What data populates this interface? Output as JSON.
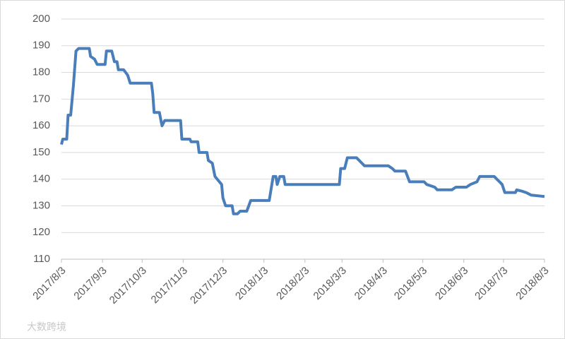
{
  "chart_data": {
    "type": "line",
    "x": [
      "2017/8/3",
      "2017/8/4",
      "2017/8/7",
      "2017/8/8",
      "2017/8/10",
      "2017/8/12",
      "2017/8/14",
      "2017/8/16",
      "2017/8/24",
      "2017/8/25",
      "2017/8/28",
      "2017/8/30",
      "2017/9/5",
      "2017/9/6",
      "2017/9/10",
      "2017/9/12",
      "2017/9/14",
      "2017/9/15",
      "2017/9/19",
      "2017/9/22",
      "2017/9/24",
      "2017/10/10",
      "2017/10/11",
      "2017/10/12",
      "2017/10/16",
      "2017/10/18",
      "2017/10/20",
      "2017/11/1",
      "2017/11/2",
      "2017/11/8",
      "2017/11/9",
      "2017/11/14",
      "2017/11/15",
      "2017/11/21",
      "2017/11/22",
      "2017/11/25",
      "2017/11/27",
      "2017/12/2",
      "2017/12/3",
      "2017/12/5",
      "2017/12/10",
      "2017/12/11",
      "2017/12/14",
      "2017/12/16",
      "2017/12/21",
      "2017/12/24",
      "2018/1/7",
      "2018/1/10",
      "2018/1/12",
      "2018/1/13",
      "2018/1/15",
      "2018/1/18",
      "2018/1/19",
      "2018/3/1",
      "2018/3/2",
      "2018/3/5",
      "2018/3/7",
      "2018/3/14",
      "2018/3/16",
      "2018/3/18",
      "2018/3/20",
      "2018/4/7",
      "2018/4/10",
      "2018/4/12",
      "2018/4/20",
      "2018/4/23",
      "2018/5/4",
      "2018/5/6",
      "2018/5/12",
      "2018/5/14",
      "2018/5/25",
      "2018/5/28",
      "2018/6/5",
      "2018/6/8",
      "2018/6/13",
      "2018/6/15",
      "2018/6/26",
      "2018/6/28",
      "2018/6/30",
      "2018/7/2",
      "2018/7/4",
      "2018/7/12",
      "2018/7/13",
      "2018/7/17",
      "2018/7/20",
      "2018/7/24",
      "2018/8/3"
    ],
    "series": [
      {
        "color": "#4a7ebb",
        "values": [
          153,
          155,
          155,
          164,
          164,
          175,
          188,
          189,
          189,
          186,
          185,
          183,
          183,
          188,
          188,
          184,
          184,
          181,
          181,
          179,
          176,
          176,
          172,
          165,
          165,
          160,
          162,
          162,
          155,
          155,
          154,
          154,
          150,
          150,
          147,
          146,
          141,
          138,
          133,
          130,
          130,
          127,
          127,
          128,
          128,
          132,
          132,
          141,
          141,
          138,
          141,
          141,
          138,
          138,
          144,
          144,
          148,
          148,
          147,
          146,
          145,
          145,
          144,
          143,
          143,
          139,
          139,
          138,
          137,
          136,
          136,
          137,
          137,
          138,
          139,
          141,
          141,
          140,
          139,
          138,
          135,
          135,
          136,
          135.5,
          135,
          134,
          133.5
        ]
      }
    ],
    "xlim": [
      "2017/8/3",
      "2018/8/3"
    ],
    "xticks": [
      "2017/8/3",
      "2017/9/3",
      "2017/10/3",
      "2017/11/3",
      "2017/12/3",
      "2018/1/3",
      "2018/2/3",
      "2018/3/3",
      "2018/4/3",
      "2018/5/3",
      "2018/6/3",
      "2018/7/3",
      "2018/8/3"
    ],
    "ylim": [
      110,
      200
    ],
    "yticks": [
      110,
      120,
      130,
      140,
      150,
      160,
      170,
      180,
      190,
      200
    ],
    "grid": true,
    "watermark": "大数跨境"
  }
}
